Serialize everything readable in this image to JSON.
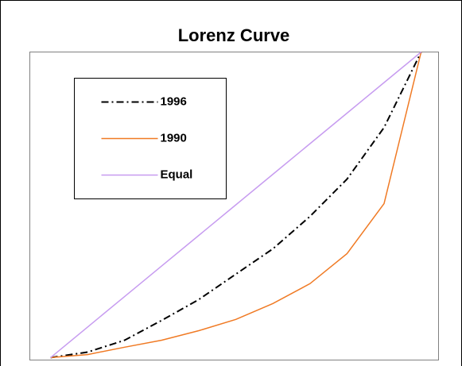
{
  "chart_data": {
    "type": "line",
    "title": "Lorenz Curve",
    "x": [
      0,
      10,
      20,
      30,
      40,
      50,
      60,
      70,
      80,
      90,
      100
    ],
    "series": [
      {
        "name": "1996",
        "color": "#000000",
        "dash": "dashdot",
        "values": [
          0,
          1.8,
          5.7,
          12.2,
          19,
          27.3,
          35.6,
          46.2,
          58.4,
          75.3,
          100
        ]
      },
      {
        "name": "1990",
        "color": "#f07a24",
        "dash": "solid",
        "values": [
          0,
          1.0,
          3.4,
          5.7,
          8.8,
          12.5,
          17.7,
          24.2,
          34.0,
          50.4,
          100
        ]
      },
      {
        "name": "Equal",
        "color": "#c79cf0",
        "dash": "solid",
        "values": [
          0,
          10,
          20,
          30,
          40,
          50,
          60,
          70,
          80,
          90,
          100
        ]
      }
    ],
    "xlim": [
      -5.6,
      104.7
    ],
    "ylim": [
      -0.8,
      100
    ],
    "grid": false,
    "legend": "upper left"
  }
}
